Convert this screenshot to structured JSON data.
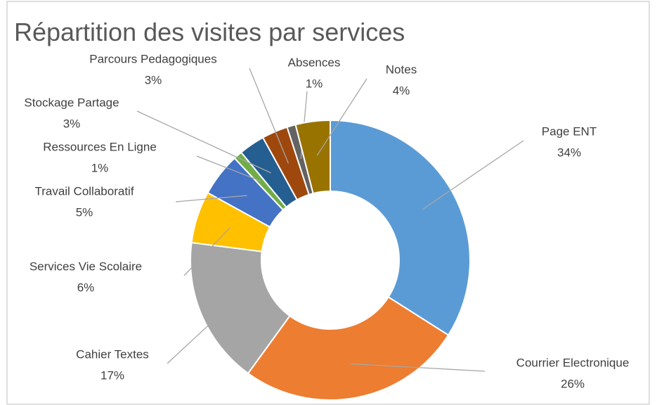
{
  "chart_data": {
    "type": "donut",
    "title": "Répartition des visites par services",
    "categories": [
      "Page ENT",
      "Courrier Electronique",
      "Cahier Textes",
      "Services Vie Scolaire",
      "Travail Collaboratif",
      "Ressources En Ligne",
      "Stockage Partage",
      "Parcours Pedagogiques",
      "Absences",
      "Notes"
    ],
    "values": [
      34,
      26,
      17,
      6,
      5,
      1,
      3,
      3,
      1,
      4
    ],
    "value_labels": [
      "34%",
      "26%",
      "17%",
      "6%",
      "5%",
      "1%",
      "3%",
      "3%",
      "1%",
      "4%"
    ],
    "colors": [
      "#5b9bd5",
      "#ed7d31",
      "#a5a5a5",
      "#ffc000",
      "#4472c4",
      "#70ad47",
      "#255e91",
      "#9e480e",
      "#636363",
      "#997300"
    ]
  }
}
